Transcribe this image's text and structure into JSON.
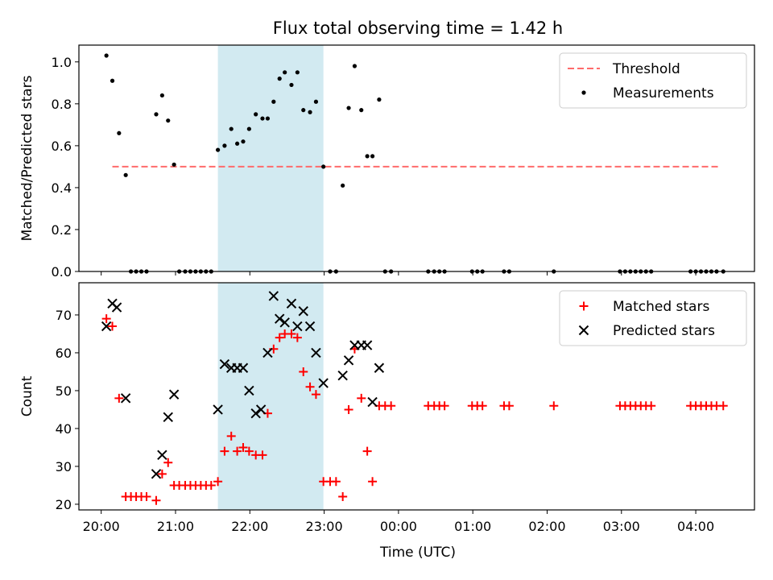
{
  "chart_data": {
    "title": "Flux total observing time = 1.42 h",
    "xlabel": "Time (UTC)",
    "x_unit": "hours since 00:00 UTC",
    "x_tick_labels": [
      "20:00",
      "21:00",
      "22:00",
      "23:00",
      "00:00",
      "01:00",
      "02:00",
      "03:00",
      "04:00"
    ],
    "x_ticks": [
      20,
      21,
      22,
      23,
      24,
      25,
      26,
      27,
      28
    ],
    "xlim": [
      19.7,
      28.79
    ],
    "highlight_span": [
      21.57,
      22.99
    ],
    "highlight_color": "#add8e6",
    "subplots": [
      {
        "type": "scatter",
        "ylabel": "Matched/Predicted stars",
        "ylim": [
          0,
          1.08
        ],
        "y_tick_labels": [
          "0.0",
          "0.2",
          "0.4",
          "0.6",
          "0.8",
          "1.0"
        ],
        "y_ticks": [
          0,
          0.2,
          0.4,
          0.6,
          0.8,
          1.0
        ],
        "legend_position": "top-right",
        "threshold": {
          "name": "Threshold",
          "value": 0.5,
          "x_range": [
            20.15,
            28.33
          ],
          "color": "#ff6b6b",
          "style": "dashed"
        },
        "series": [
          {
            "name": "Measurements",
            "color": "#000000",
            "marker": "dot",
            "points": [
              [
                20.07,
                1.03
              ],
              [
                20.15,
                0.91
              ],
              [
                20.24,
                0.66
              ],
              [
                20.33,
                0.46
              ],
              [
                20.4,
                0.0
              ],
              [
                20.47,
                0.0
              ],
              [
                20.54,
                0.0
              ],
              [
                20.61,
                0.0
              ],
              [
                20.74,
                0.75
              ],
              [
                20.82,
                0.84
              ],
              [
                20.9,
                0.72
              ],
              [
                20.98,
                0.51
              ],
              [
                21.05,
                0.0
              ],
              [
                21.13,
                0.0
              ],
              [
                21.2,
                0.0
              ],
              [
                21.27,
                0.0
              ],
              [
                21.34,
                0.0
              ],
              [
                21.41,
                0.0
              ],
              [
                21.48,
                0.0
              ],
              [
                21.57,
                0.58
              ],
              [
                21.66,
                0.6
              ],
              [
                21.75,
                0.68
              ],
              [
                21.83,
                0.61
              ],
              [
                21.91,
                0.62
              ],
              [
                21.99,
                0.68
              ],
              [
                22.08,
                0.75
              ],
              [
                22.17,
                0.73
              ],
              [
                22.24,
                0.73
              ],
              [
                22.32,
                0.81
              ],
              [
                22.4,
                0.92
              ],
              [
                22.47,
                0.95
              ],
              [
                22.56,
                0.89
              ],
              [
                22.64,
                0.95
              ],
              [
                22.72,
                0.77
              ],
              [
                22.81,
                0.76
              ],
              [
                22.89,
                0.81
              ],
              [
                22.99,
                0.5
              ],
              [
                23.08,
                0.0
              ],
              [
                23.16,
                0.0
              ],
              [
                23.25,
                0.41
              ],
              [
                23.33,
                0.78
              ],
              [
                23.41,
                0.98
              ],
              [
                23.5,
                0.77
              ],
              [
                23.58,
                0.55
              ],
              [
                23.65,
                0.55
              ],
              [
                23.74,
                0.82
              ],
              [
                23.82,
                0.0
              ],
              [
                23.9,
                0.0
              ],
              [
                24.4,
                0.0
              ],
              [
                24.48,
                0.0
              ],
              [
                24.55,
                0.0
              ],
              [
                24.62,
                0.0
              ],
              [
                24.99,
                0.0
              ],
              [
                25.06,
                0.0
              ],
              [
                25.13,
                0.0
              ],
              [
                25.42,
                0.0
              ],
              [
                25.49,
                0.0
              ],
              [
                26.09,
                0.0
              ],
              [
                26.98,
                0.0
              ],
              [
                27.05,
                0.0
              ],
              [
                27.12,
                0.0
              ],
              [
                27.19,
                0.0
              ],
              [
                27.26,
                0.0
              ],
              [
                27.33,
                0.0
              ],
              [
                27.4,
                0.0
              ],
              [
                27.93,
                0.0
              ],
              [
                28.0,
                0.0
              ],
              [
                28.07,
                0.0
              ],
              [
                28.14,
                0.0
              ],
              [
                28.21,
                0.0
              ],
              [
                28.28,
                0.0
              ],
              [
                28.37,
                0.0
              ]
            ]
          }
        ]
      },
      {
        "type": "scatter",
        "ylabel": "Count",
        "ylim": [
          18.5,
          78.5
        ],
        "y_tick_labels": [
          "20",
          "30",
          "40",
          "50",
          "60",
          "70"
        ],
        "y_ticks": [
          20,
          30,
          40,
          50,
          60,
          70
        ],
        "legend_position": "top-right",
        "series": [
          {
            "name": "Matched stars",
            "color": "#ff0000",
            "marker": "plus",
            "points": [
              [
                20.07,
                69
              ],
              [
                20.15,
                67
              ],
              [
                20.24,
                48
              ],
              [
                20.33,
                22
              ],
              [
                20.4,
                22
              ],
              [
                20.47,
                22
              ],
              [
                20.54,
                22
              ],
              [
                20.61,
                22
              ],
              [
                20.74,
                21
              ],
              [
                20.82,
                28
              ],
              [
                20.9,
                31
              ],
              [
                20.98,
                25
              ],
              [
                21.05,
                25
              ],
              [
                21.13,
                25
              ],
              [
                21.2,
                25
              ],
              [
                21.27,
                25
              ],
              [
                21.34,
                25
              ],
              [
                21.41,
                25
              ],
              [
                21.48,
                25
              ],
              [
                21.57,
                26
              ],
              [
                21.66,
                34
              ],
              [
                21.75,
                38
              ],
              [
                21.83,
                34
              ],
              [
                21.91,
                35
              ],
              [
                21.99,
                34
              ],
              [
                22.08,
                33
              ],
              [
                22.17,
                33
              ],
              [
                22.24,
                44
              ],
              [
                22.32,
                61
              ],
              [
                22.4,
                64
              ],
              [
                22.47,
                65
              ],
              [
                22.56,
                65
              ],
              [
                22.64,
                64
              ],
              [
                22.72,
                55
              ],
              [
                22.81,
                51
              ],
              [
                22.89,
                49
              ],
              [
                22.99,
                26
              ],
              [
                23.08,
                26
              ],
              [
                23.16,
                26
              ],
              [
                23.25,
                22
              ],
              [
                23.33,
                45
              ],
              [
                23.41,
                61
              ],
              [
                23.5,
                48
              ],
              [
                23.58,
                34
              ],
              [
                23.65,
                26
              ],
              [
                23.74,
                46
              ],
              [
                23.82,
                46
              ],
              [
                23.9,
                46
              ],
              [
                24.4,
                46
              ],
              [
                24.48,
                46
              ],
              [
                24.55,
                46
              ],
              [
                24.62,
                46
              ],
              [
                24.99,
                46
              ],
              [
                25.06,
                46
              ],
              [
                25.13,
                46
              ],
              [
                25.42,
                46
              ],
              [
                25.49,
                46
              ],
              [
                26.09,
                46
              ],
              [
                26.98,
                46
              ],
              [
                27.05,
                46
              ],
              [
                27.12,
                46
              ],
              [
                27.19,
                46
              ],
              [
                27.26,
                46
              ],
              [
                27.33,
                46
              ],
              [
                27.4,
                46
              ],
              [
                27.93,
                46
              ],
              [
                28.0,
                46
              ],
              [
                28.07,
                46
              ],
              [
                28.14,
                46
              ],
              [
                28.21,
                46
              ],
              [
                28.28,
                46
              ],
              [
                28.37,
                46
              ]
            ]
          },
          {
            "name": "Predicted stars",
            "color": "#000000",
            "marker": "x",
            "points": [
              [
                20.07,
                67
              ],
              [
                20.15,
                73
              ],
              [
                20.21,
                72
              ],
              [
                20.33,
                48
              ],
              [
                20.74,
                28
              ],
              [
                20.82,
                33
              ],
              [
                20.9,
                43
              ],
              [
                20.98,
                49
              ],
              [
                21.57,
                45
              ],
              [
                21.66,
                57
              ],
              [
                21.75,
                56
              ],
              [
                21.83,
                56
              ],
              [
                21.91,
                56
              ],
              [
                21.99,
                50
              ],
              [
                22.08,
                44
              ],
              [
                22.15,
                45
              ],
              [
                22.24,
                60
              ],
              [
                22.32,
                75
              ],
              [
                22.4,
                69
              ],
              [
                22.47,
                68
              ],
              [
                22.56,
                73
              ],
              [
                22.64,
                67
              ],
              [
                22.72,
                71
              ],
              [
                22.81,
                67
              ],
              [
                22.89,
                60
              ],
              [
                22.99,
                52
              ],
              [
                23.25,
                54
              ],
              [
                23.33,
                58
              ],
              [
                23.41,
                62
              ],
              [
                23.5,
                62
              ],
              [
                23.58,
                62
              ],
              [
                23.65,
                47
              ],
              [
                23.74,
                56
              ]
            ]
          }
        ]
      }
    ]
  }
}
